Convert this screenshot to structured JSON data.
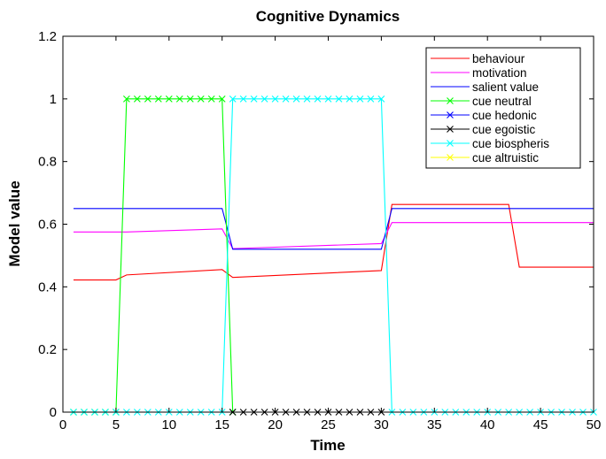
{
  "chart_data": {
    "type": "line",
    "title": "Cognitive Dynamics",
    "xlabel": "Time",
    "ylabel": "Model value",
    "xlim": [
      0,
      50
    ],
    "ylim": [
      0,
      1.2
    ],
    "xticks": [
      "0",
      "5",
      "10",
      "15",
      "20",
      "25",
      "30",
      "35",
      "40",
      "45",
      "50"
    ],
    "yticks": [
      "0",
      "0.2",
      "0.4",
      "0.6",
      "0.8",
      "1",
      "1.2"
    ],
    "grid": false,
    "legend_position": "top-right",
    "series": [
      {
        "name": "behaviour",
        "color": "#ff0000",
        "marker": "none",
        "x": [
          1,
          5,
          6,
          15,
          16,
          30,
          31,
          42,
          43,
          50
        ],
        "y": [
          0.422,
          0.422,
          0.438,
          0.455,
          0.43,
          0.452,
          0.663,
          0.663,
          0.463,
          0.463
        ]
      },
      {
        "name": "motivation",
        "color": "#ff00ff",
        "marker": "none",
        "x": [
          1,
          6,
          15,
          16,
          30,
          31,
          50
        ],
        "y": [
          0.575,
          0.575,
          0.585,
          0.522,
          0.538,
          0.605,
          0.605
        ]
      },
      {
        "name": "salient value",
        "color": "#0000ff",
        "marker": "none",
        "x": [
          1,
          15,
          16,
          30,
          31,
          50
        ],
        "y": [
          0.65,
          0.65,
          0.52,
          0.52,
          0.65,
          0.65
        ]
      },
      {
        "name": "cue neutral",
        "color": "#00ff00",
        "marker": "x",
        "x": [
          1,
          2,
          3,
          4,
          5,
          6,
          7,
          8,
          9,
          10,
          11,
          12,
          13,
          14,
          15,
          16
        ],
        "y": [
          0,
          0,
          0,
          0,
          0,
          1,
          1,
          1,
          1,
          1,
          1,
          1,
          1,
          1,
          1,
          0
        ]
      },
      {
        "name": "cue hedonic",
        "color": "#0000ff",
        "marker": "x",
        "x": [],
        "y": []
      },
      {
        "name": "cue egoistic",
        "color": "#000000",
        "marker": "x",
        "x": [
          16,
          17,
          18,
          19,
          20,
          21,
          22,
          23,
          24,
          25,
          26,
          27,
          28,
          29,
          30
        ],
        "y": [
          0,
          0,
          0,
          0,
          0,
          0,
          0,
          0,
          0,
          0,
          0,
          0,
          0,
          0,
          0
        ]
      },
      {
        "name": "cue biospheris",
        "color": "#00ffff",
        "marker": "x",
        "x": [
          1,
          2,
          3,
          4,
          5,
          6,
          7,
          8,
          9,
          10,
          11,
          12,
          13,
          14,
          15,
          16,
          17,
          18,
          19,
          20,
          21,
          22,
          23,
          24,
          25,
          26,
          27,
          28,
          29,
          30,
          31,
          32,
          33,
          34,
          35,
          36,
          37,
          38,
          39,
          40,
          41,
          42,
          43,
          44,
          45,
          46,
          47,
          48,
          49,
          50
        ],
        "y": [
          0,
          0,
          0,
          0,
          0,
          0,
          0,
          0,
          0,
          0,
          0,
          0,
          0,
          0,
          0,
          1,
          1,
          1,
          1,
          1,
          1,
          1,
          1,
          1,
          1,
          1,
          1,
          1,
          1,
          1,
          0,
          0,
          0,
          0,
          0,
          0,
          0,
          0,
          0,
          0,
          0,
          0,
          0,
          0,
          0,
          0,
          0,
          0,
          0,
          0
        ]
      },
      {
        "name": "cue altruistic",
        "color": "#ffff00",
        "marker": "x",
        "x": [],
        "y": []
      }
    ]
  }
}
